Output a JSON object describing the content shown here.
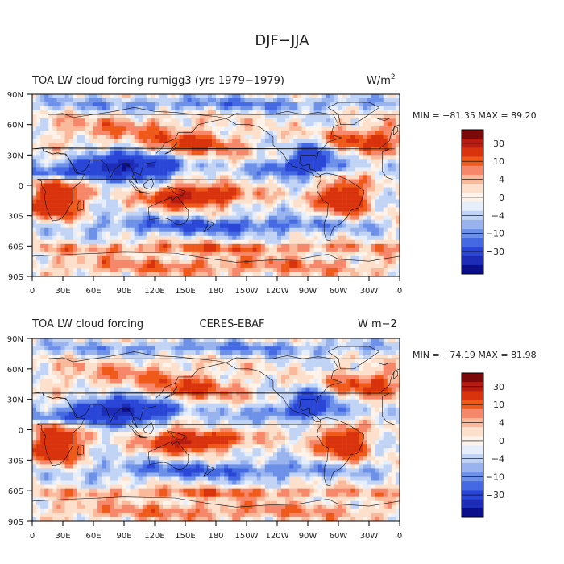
{
  "page": {
    "title": "DJF−JJA"
  },
  "panels": [
    {
      "left_title": "TOA LW cloud forcing",
      "center_title": "rumigg3 (yrs 1979−1979)",
      "units": "W/m",
      "units_sup": "2",
      "stats": "MIN = −81.35  MAX =  89.20"
    },
    {
      "left_title": "TOA LW cloud forcing",
      "center_title": "CERES-EBAF",
      "units": "W m−2",
      "units_sup": "",
      "stats": "MIN = −74.19  MAX =  81.98"
    }
  ],
  "colorbar": {
    "labels": [
      "30",
      "10",
      "4",
      "0",
      "−4",
      "−10",
      "−30"
    ],
    "colors": [
      "#7a0a0a",
      "#b81c10",
      "#d9330d",
      "#ef5a1a",
      "#f7876a",
      "#fab99a",
      "#fde0cc",
      "#fdf3ea",
      "#e6eefc",
      "#c2d4f5",
      "#98b3ee",
      "#6d90e8",
      "#4569e3",
      "#2a46d6",
      "#1d2db8",
      "#0c0f8a"
    ]
  },
  "chart_data": [
    {
      "type": "heatmap",
      "title": "rumigg3 (yrs 1979−1979)",
      "xlabel": "",
      "ylabel": "",
      "x_ticks": [
        "0",
        "30E",
        "60E",
        "90E",
        "120E",
        "150E",
        "180",
        "150W",
        "120W",
        "90W",
        "60W",
        "30W",
        "0"
      ],
      "y_ticks": [
        "90N",
        "60N",
        "30N",
        "0",
        "30S",
        "60S",
        "90S"
      ],
      "xlim": [
        0,
        360
      ],
      "ylim": [
        -90,
        90
      ],
      "min": -81.35,
      "max": 89.2,
      "contour_levels": [
        -50,
        -40,
        -30,
        -20,
        -15,
        -10,
        -7,
        -4,
        -2,
        0,
        2,
        4,
        7,
        10,
        15,
        20,
        30,
        40,
        50
      ]
    },
    {
      "type": "heatmap",
      "title": "CERES-EBAF",
      "xlabel": "",
      "ylabel": "",
      "x_ticks": [
        "0",
        "30E",
        "60E",
        "90E",
        "120E",
        "150E",
        "180",
        "150W",
        "120W",
        "90W",
        "60W",
        "30W",
        "0"
      ],
      "y_ticks": [
        "90N",
        "60N",
        "30N",
        "0",
        "30S",
        "60S",
        "90S"
      ],
      "xlim": [
        0,
        360
      ],
      "ylim": [
        -90,
        90
      ],
      "min": -74.19,
      "max": 81.98,
      "contour_levels": [
        -50,
        -40,
        -30,
        -20,
        -15,
        -10,
        -7,
        -4,
        -2,
        0,
        2,
        4,
        7,
        10,
        15,
        20,
        30,
        40,
        50
      ]
    }
  ]
}
